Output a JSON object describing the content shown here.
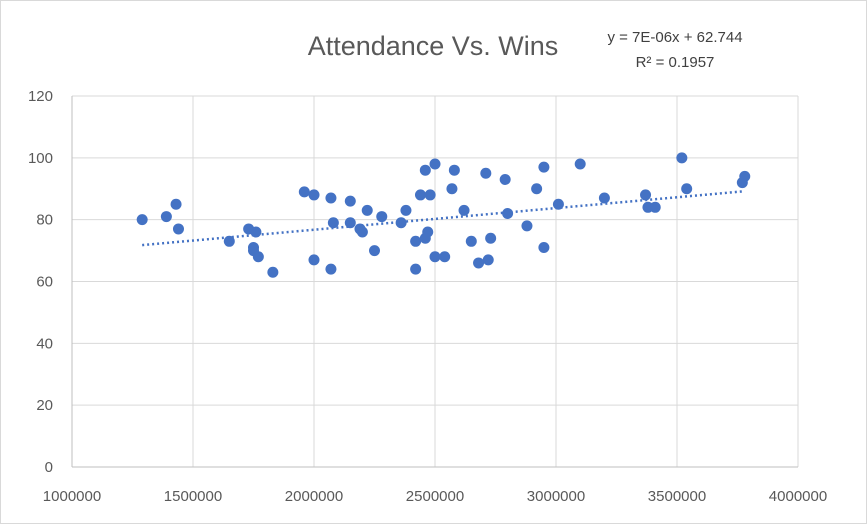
{
  "chart_data": {
    "type": "scatter",
    "title": "Attendance Vs. Wins",
    "xlabel": "",
    "ylabel": "",
    "xlim": [
      1000000,
      4000000
    ],
    "ylim": [
      0,
      120
    ],
    "xticks": [
      1000000,
      1500000,
      2000000,
      2500000,
      3000000,
      3500000,
      4000000
    ],
    "yticks": [
      0,
      20,
      40,
      60,
      80,
      100,
      120
    ],
    "xtick_labels": [
      "1000000",
      "1500000",
      "2000000",
      "2500000",
      "3000000",
      "3500000",
      "4000000"
    ],
    "ytick_labels": [
      "0",
      "20",
      "40",
      "60",
      "80",
      "100",
      "120"
    ],
    "grid": "horizontal and vertical",
    "legend": "none",
    "trendline": {
      "type": "linear",
      "slope": 7e-06,
      "intercept": 62.744,
      "x_range": [
        1290000,
        3780000
      ],
      "style": "dotted",
      "equation": "y = 7E-06x + 62.744",
      "r_squared": "R² = 0.1957"
    },
    "colors": {
      "points": "#4472c4",
      "trendline": "#4472c4"
    },
    "series": [
      {
        "points": [
          [
            1290000,
            80
          ],
          [
            1390000,
            81
          ],
          [
            1430000,
            85
          ],
          [
            1440000,
            77
          ],
          [
            1650000,
            73
          ],
          [
            1730000,
            77
          ],
          [
            1750000,
            71
          ],
          [
            1750000,
            70
          ],
          [
            1760000,
            76
          ],
          [
            1770000,
            68
          ],
          [
            1830000,
            63
          ],
          [
            1960000,
            89
          ],
          [
            2000000,
            88
          ],
          [
            2000000,
            67
          ],
          [
            2070000,
            87
          ],
          [
            2070000,
            64
          ],
          [
            2080000,
            79
          ],
          [
            2150000,
            86
          ],
          [
            2150000,
            79
          ],
          [
            2190000,
            77
          ],
          [
            2200000,
            76
          ],
          [
            2220000,
            83
          ],
          [
            2250000,
            70
          ],
          [
            2280000,
            81
          ],
          [
            2360000,
            79
          ],
          [
            2380000,
            83
          ],
          [
            2420000,
            73
          ],
          [
            2420000,
            64
          ],
          [
            2440000,
            88
          ],
          [
            2460000,
            74
          ],
          [
            2460000,
            96
          ],
          [
            2470000,
            76
          ],
          [
            2480000,
            88
          ],
          [
            2500000,
            98
          ],
          [
            2500000,
            68
          ],
          [
            2540000,
            68
          ],
          [
            2570000,
            90
          ],
          [
            2580000,
            96
          ],
          [
            2620000,
            83
          ],
          [
            2650000,
            73
          ],
          [
            2680000,
            66
          ],
          [
            2710000,
            95
          ],
          [
            2720000,
            67
          ],
          [
            2730000,
            74
          ],
          [
            2790000,
            93
          ],
          [
            2800000,
            82
          ],
          [
            2880000,
            78
          ],
          [
            2920000,
            90
          ],
          [
            2950000,
            97
          ],
          [
            2950000,
            71
          ],
          [
            3010000,
            85
          ],
          [
            3100000,
            98
          ],
          [
            3200000,
            87
          ],
          [
            3370000,
            88
          ],
          [
            3380000,
            84
          ],
          [
            3410000,
            84
          ],
          [
            3520000,
            100
          ],
          [
            3540000,
            90
          ],
          [
            3770000,
            92
          ],
          [
            3780000,
            94
          ]
        ]
      }
    ]
  }
}
